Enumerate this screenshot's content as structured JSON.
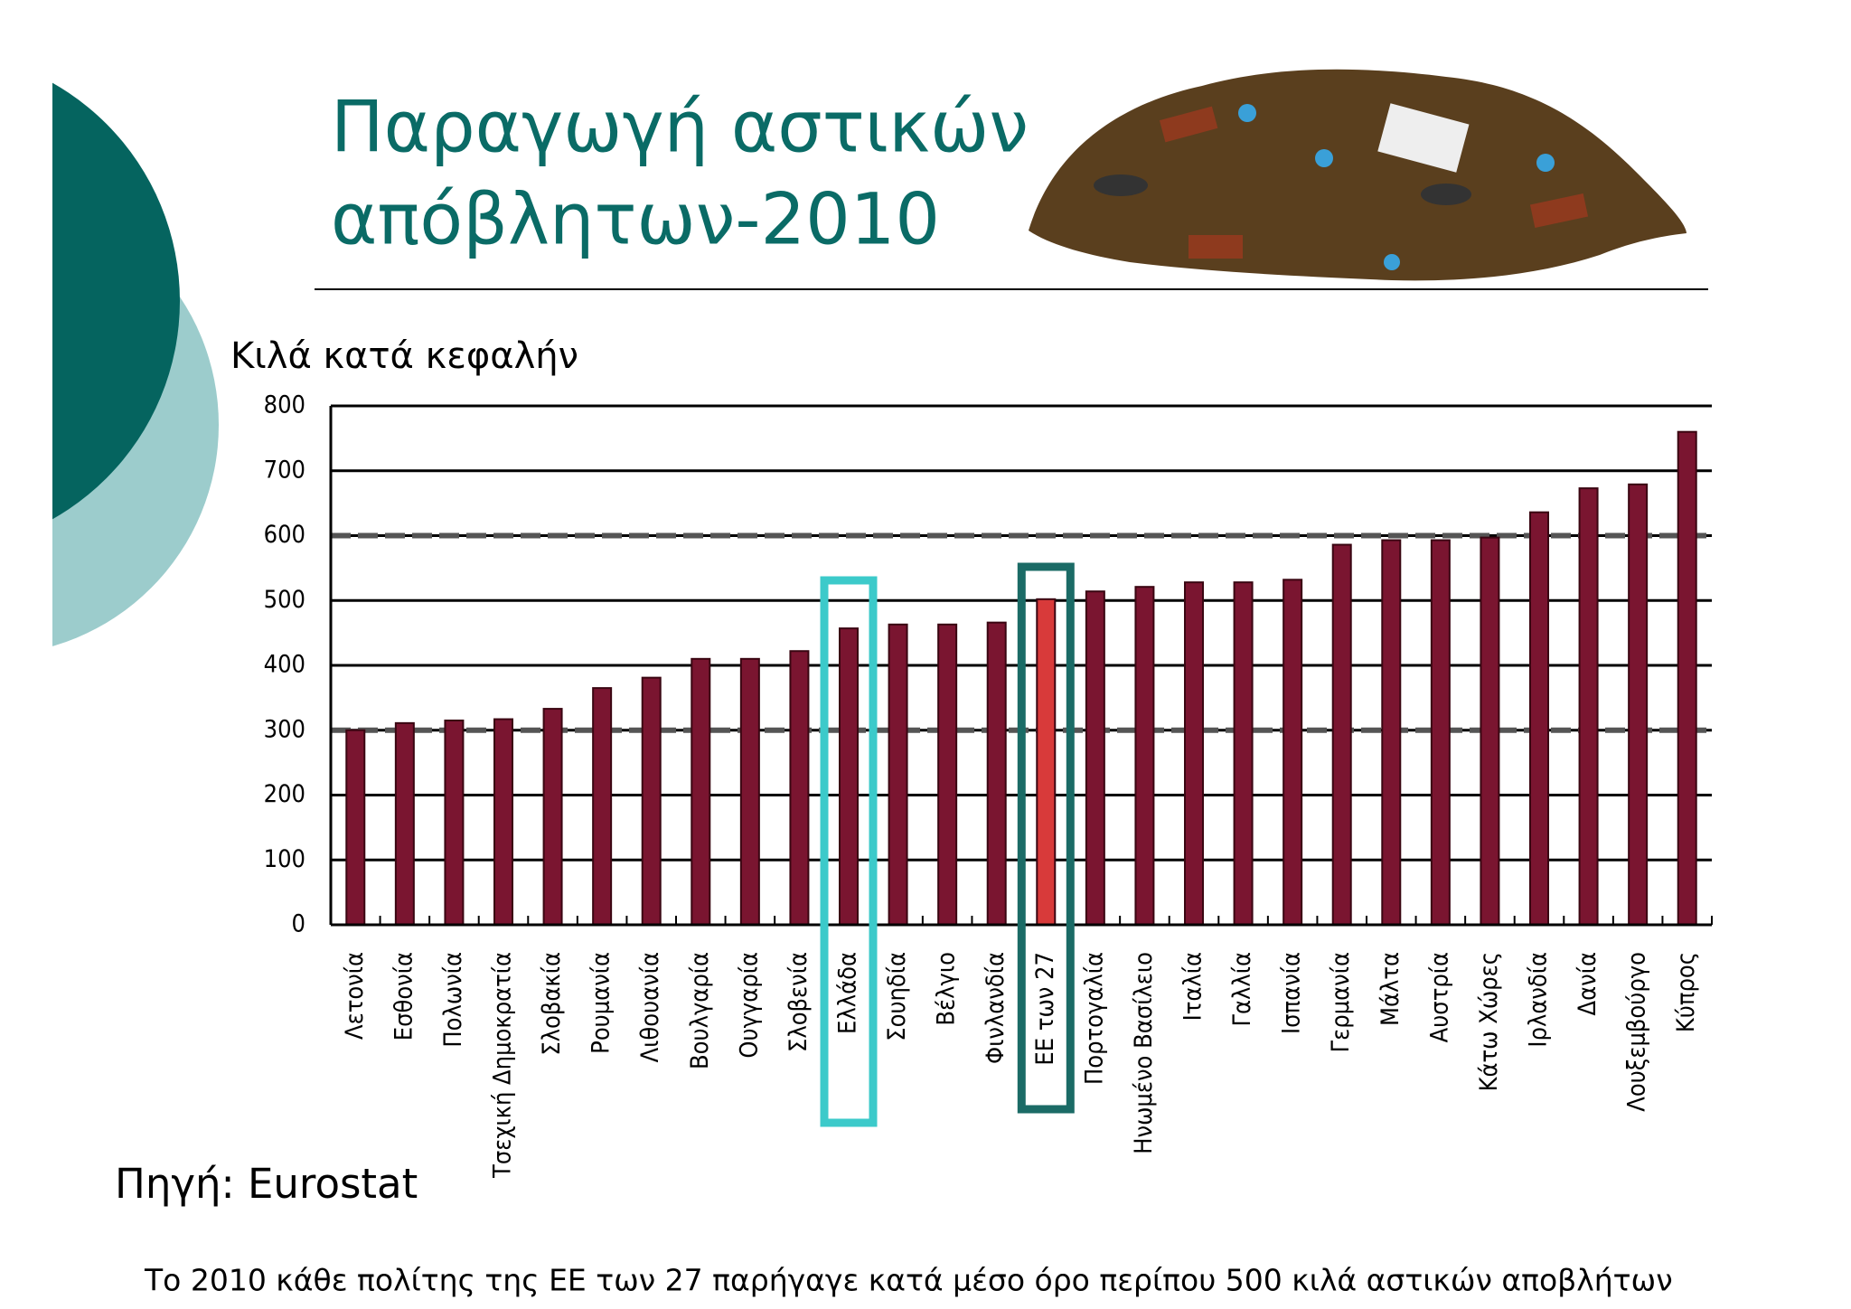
{
  "chart_data": {
    "type": "bar",
    "title": "Παραγωγή αστικών απόβλητων-2010",
    "title_lines": [
      "Παραγωγή αστικών",
      "απόβλητων-2010"
    ],
    "y_label": "Κιλά κατά κεφαλήν",
    "source": "Πηγή: Eurostat",
    "footnote": "Το 2010 κάθε πολίτης της ΕΕ των 27 παρήγαγε κατά μέσο όρο περίπου 500 κιλά αστικών αποβλήτων",
    "categories": [
      "Λετονία",
      "Εσθονία",
      "Πολωνία",
      "Τσεχική Δημοκρατία",
      "Σλοβακία",
      "Ρουμανία",
      "Λιθουανία",
      "Βουλγαρία",
      "Ουγγαρία",
      "Σλοβενία",
      "Ελλάδα",
      "Σουηδία",
      "Βέλγιο",
      "Φινλανδία",
      "ΕΕ των 27",
      "Πορτογαλία",
      "Ηνωμένο Βασίλειο",
      "Ιταλία",
      "Γαλλία",
      "Ισπανία",
      "Γερμανία",
      "Μάλτα",
      "Αυστρία",
      "Κάτω Χώρες",
      "Ιρλανδία",
      "Δανία",
      "Λουξεμβούργο",
      "Κύπρος"
    ],
    "values": [
      300,
      311,
      315,
      317,
      333,
      365,
      381,
      410,
      410,
      422,
      457,
      463,
      463,
      466,
      502,
      514,
      521,
      528,
      528,
      532,
      586,
      593,
      593,
      597,
      636,
      673,
      679,
      760
    ],
    "color": "#7a1530",
    "highlight_bar": {
      "category": "ΕΕ των 27",
      "color": "#d83a3a"
    },
    "boxed_categories": [
      {
        "category": "Ελλάδα",
        "color": "#3ccaca"
      },
      {
        "category": "ΕΕ των 27",
        "color": "#1b6b66"
      }
    ],
    "reference_lines": [
      300,
      600
    ],
    "ylim": [
      0,
      800
    ],
    "yticks": [
      0,
      100,
      200,
      300,
      400,
      500,
      600,
      700,
      800
    ],
    "grid": true
  }
}
